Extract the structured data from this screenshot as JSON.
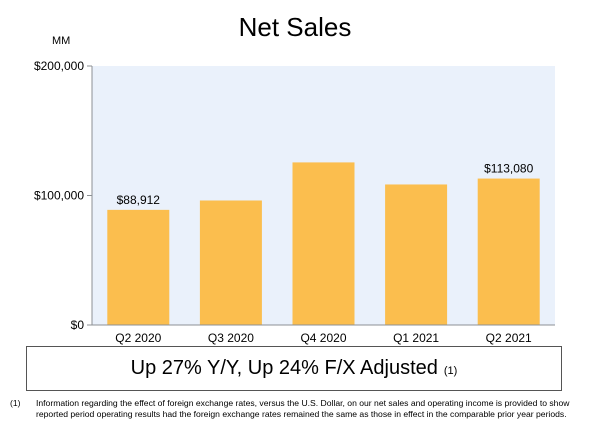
{
  "chart_data": {
    "type": "bar",
    "title": "Net Sales",
    "ylabel": "MM",
    "categories": [
      "Q2 2020",
      "Q3 2020",
      "Q4 2020",
      "Q1 2021",
      "Q2 2021"
    ],
    "values": [
      88912,
      96145,
      125555,
      108518,
      113080
    ],
    "data_labels": [
      "$88,912",
      "",
      "",
      "",
      "$113,080"
    ],
    "ylim": [
      0,
      200000
    ],
    "yticks": [
      0,
      100000,
      200000
    ],
    "ytick_labels": [
      "$0",
      "$100,000",
      "$200,000"
    ],
    "grid": false,
    "legend": "none",
    "colors": {
      "bar": "#FBBE4E",
      "plot_background": "#EAF1FB",
      "axis": "#8C9094"
    }
  },
  "callout": {
    "text": "Up 27% Y/Y, Up 24% F/X Adjusted",
    "ref": "(1)"
  },
  "footnote": {
    "number": "(1)",
    "text": "Information regarding the effect of foreign exchange rates, versus the U.S. Dollar, on our net sales and operating income is provided to show reported period operating results had the foreign exchange rates remained the same as those in effect in the comparable prior year periods."
  }
}
